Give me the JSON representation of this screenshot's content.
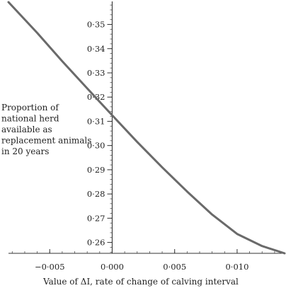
{
  "chart_data": {
    "type": "line",
    "title": "",
    "xlabel": "Value of ΔI, rate of change of calving interval",
    "ylabel_lines": [
      "Proportion of",
      "national herd",
      "available as",
      "replacement animals",
      "in 20 years"
    ],
    "xlim": [
      -0.0083,
      0.0138
    ],
    "ylim": [
      0.2555,
      0.3595
    ],
    "x_ticks": [
      -0.005,
      0.0,
      0.005,
      0.01
    ],
    "x_tick_labels": [
      "−0·005",
      "0·000",
      "0·005",
      "0·010"
    ],
    "y_ticks": [
      0.26,
      0.27,
      0.28,
      0.29,
      0.3,
      0.31,
      0.32,
      0.33,
      0.34,
      0.35
    ],
    "y_tick_labels": [
      "0·26",
      "0·27",
      "0·28",
      "0·29",
      "0·30",
      "0·31",
      "0·32",
      "0·33",
      "0·34",
      "0·35"
    ],
    "x_minor_step": 0.001,
    "y_minor_step": 0.002,
    "grid": false,
    "series": [
      {
        "x": [
          -0.0083,
          -0.006,
          -0.004,
          -0.002,
          0.0,
          0.002,
          0.004,
          0.006,
          0.008,
          0.01,
          0.012,
          0.0138
        ],
        "y": [
          0.3592,
          0.3465,
          0.3348,
          0.3236,
          0.3125,
          0.3015,
          0.291,
          0.281,
          0.2715,
          0.2635,
          0.2585,
          0.2555
        ]
      }
    ]
  }
}
